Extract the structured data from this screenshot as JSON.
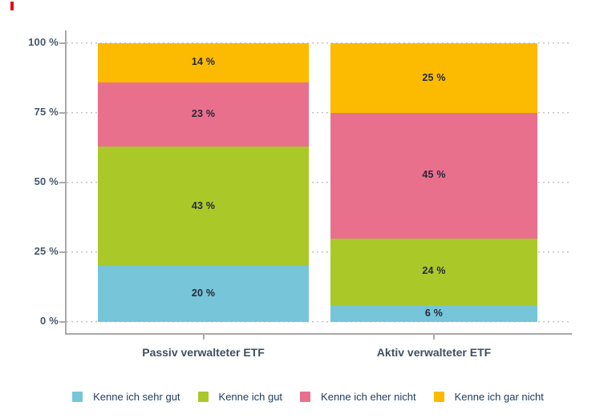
{
  "page": {
    "accent_mark_color": "#e30613",
    "background_color": "#ffffff"
  },
  "chart_data": {
    "type": "bar",
    "stacked": true,
    "orientation": "vertical",
    "title": "",
    "categories": [
      "Passiv verwalteter ETF",
      "Aktiv verwalteter ETF"
    ],
    "series": [
      {
        "name": "Kenne ich sehr gut",
        "color": "#76c5d9",
        "values": [
          20,
          6
        ]
      },
      {
        "name": "Kenne ich gut",
        "color": "#abc829",
        "values": [
          43,
          24
        ]
      },
      {
        "name": "Kenne ich eher nicht",
        "color": "#e9708c",
        "values": [
          23,
          45
        ]
      },
      {
        "name": "Kenne ich gar nicht",
        "color": "#fcba00",
        "values": [
          14,
          25
        ]
      }
    ],
    "data_labels": [
      [
        "20 %",
        "43 %",
        "23 %",
        "14 %"
      ],
      [
        "6 %",
        "24 %",
        "45 %",
        "25 %"
      ]
    ],
    "y_ticks": [
      {
        "value": 0,
        "label": "0 %"
      },
      {
        "value": 25,
        "label": "25 %"
      },
      {
        "value": 50,
        "label": "50 %"
      },
      {
        "value": 75,
        "label": "75 %"
      },
      {
        "value": 100,
        "label": "100 %"
      }
    ],
    "ylim": [
      0,
      100
    ],
    "grid": "horizontal-dotted",
    "legend_position": "bottom"
  },
  "style": {
    "axis_color": "#a9a9a9",
    "grid_color": "#c4c4c4",
    "tick_label_color": "#47566b",
    "category_label_color": "#3f4f63",
    "segment_label_color": "#26283a",
    "legend_text_color": "#1c3c5e"
  }
}
